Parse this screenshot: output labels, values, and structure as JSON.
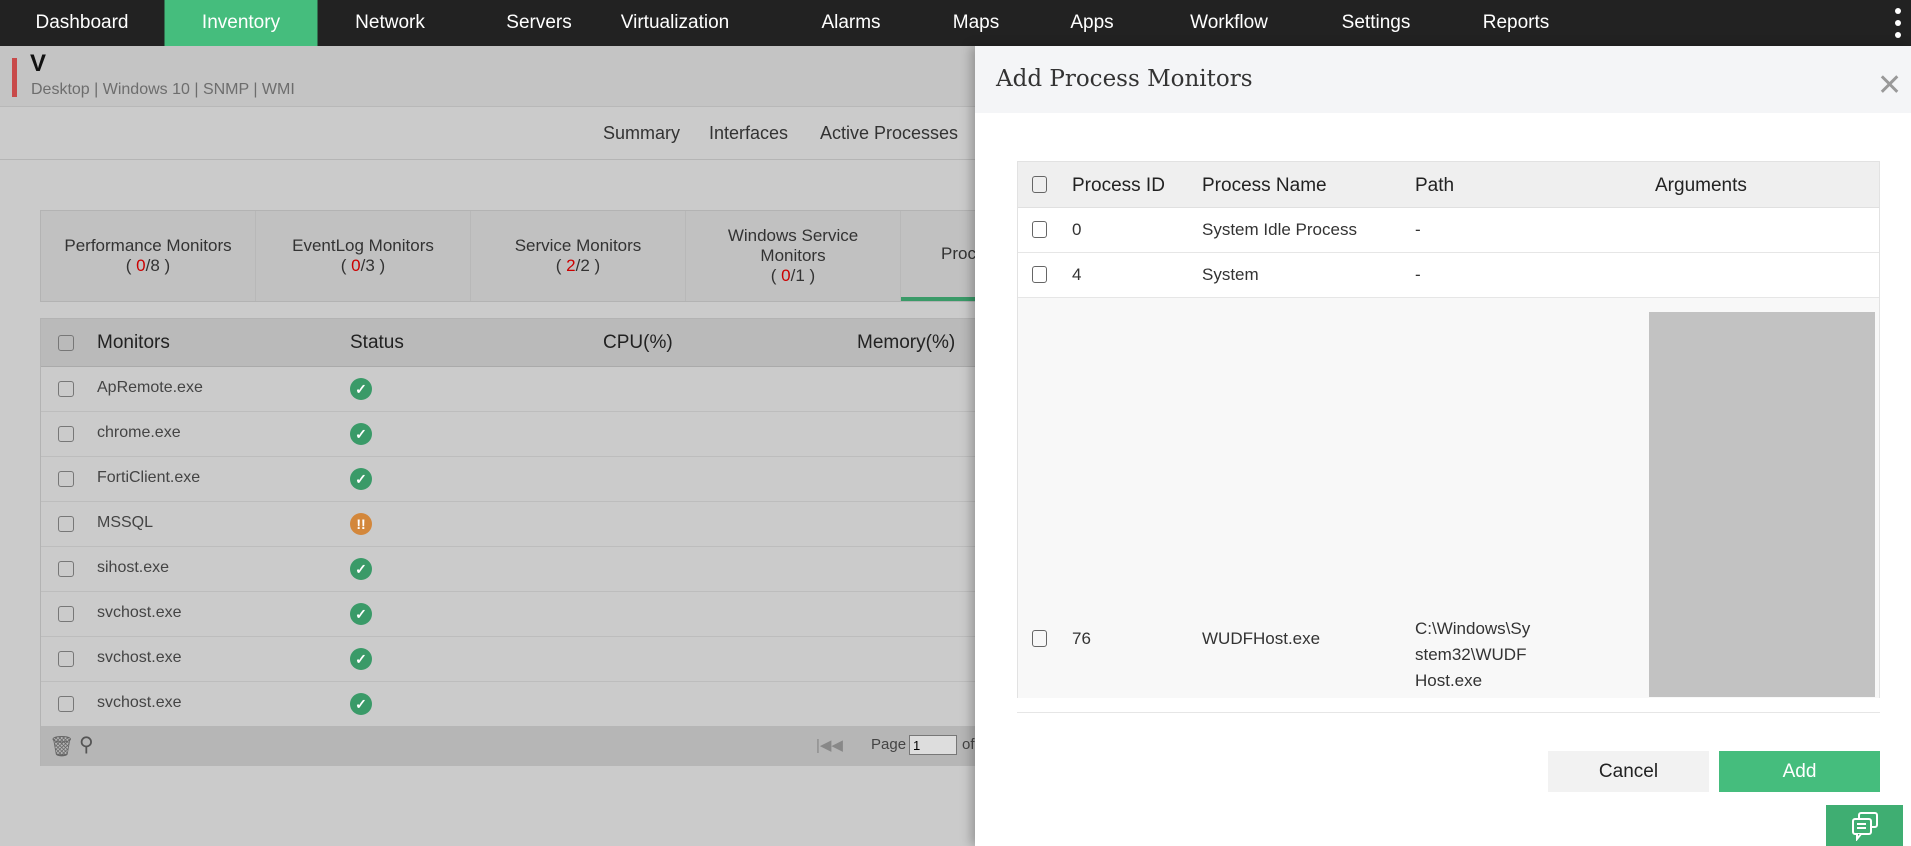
{
  "nav": {
    "items": [
      "Dashboard",
      "Inventory",
      "Network",
      "Servers",
      "Virtualization",
      "Alarms",
      "Maps",
      "Apps",
      "Workflow",
      "Settings",
      "Reports"
    ],
    "active": "Inventory"
  },
  "device": {
    "name": "V",
    "subtitle": "Desktop | Windows 10  | SNMP  | WMI"
  },
  "subtabs": [
    "Summary",
    "Interfaces",
    "Active Processes"
  ],
  "monitor_tabs": [
    {
      "label": "Performance Monitors",
      "down": "0",
      "total": "8"
    },
    {
      "label": "EventLog Monitors",
      "down": "0",
      "total": "3"
    },
    {
      "label": "Service Monitors",
      "down": "2",
      "total": "2"
    },
    {
      "label": "Windows Service Monitors",
      "down": "0",
      "total": "1"
    },
    {
      "label": "Proc"
    }
  ],
  "monitors_table": {
    "headers": [
      "Monitors",
      "Status",
      "CPU(%)",
      "Memory(%)"
    ],
    "rows": [
      {
        "name": "ApRemote.exe",
        "status": "up"
      },
      {
        "name": "chrome.exe",
        "status": "up"
      },
      {
        "name": "FortiClient.exe",
        "status": "up"
      },
      {
        "name": "MSSQL",
        "status": "warning"
      },
      {
        "name": "sihost.exe",
        "status": "up"
      },
      {
        "name": "svchost.exe",
        "status": "up"
      },
      {
        "name": "svchost.exe",
        "status": "up"
      },
      {
        "name": "svchost.exe",
        "status": "up"
      }
    ],
    "pager": {
      "label": "Page",
      "value": "1",
      "of": "of"
    }
  },
  "modal": {
    "title": "Add Process Monitors",
    "headers": [
      "Process ID",
      "Process Name",
      "Path",
      "Arguments"
    ],
    "rows": [
      {
        "pid": "0",
        "name": "System Idle Process",
        "path": "-"
      },
      {
        "pid": "4",
        "name": "System",
        "path": "-"
      },
      {
        "pid": "76",
        "name": "WUDFHost.exe",
        "path": "C:\\Windows\\System32\\WUDFHost.exe"
      }
    ],
    "cancel": "Cancel",
    "add": "Add"
  },
  "colors": {
    "accent": "#45bd7d",
    "ok": "#3a9a68",
    "warning": "#d3873b",
    "down": "#cc0000"
  }
}
